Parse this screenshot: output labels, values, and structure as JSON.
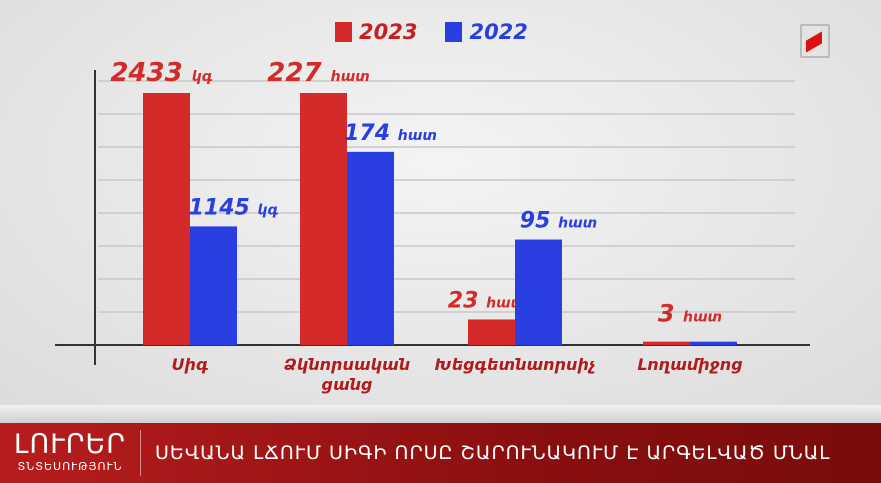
{
  "chart_data": {
    "type": "bar",
    "categories": [
      "Սիգ",
      "Ձկնորսական ցանց",
      "Խեցգետնաորսիչ",
      "Լողամիջոց"
    ],
    "category_lines": [
      [
        "Սիգ"
      ],
      [
        "Ձկնորսական",
        "ցանց"
      ],
      [
        "Խեցգետնաորսիչ"
      ],
      [
        "Լողամիջոց"
      ]
    ],
    "units": [
      "կգ",
      "հատ",
      "հատ",
      "հատ"
    ],
    "series": [
      {
        "name": "2023",
        "color": "#d42a2a",
        "values": [
          2433,
          227,
          23,
          3
        ],
        "labels": [
          "2433",
          "227",
          "23",
          "3"
        ]
      },
      {
        "name": "2022",
        "color": "#2a3fe0",
        "values": [
          1145,
          174,
          95,
          3
        ],
        "labels": [
          "1145",
          "174",
          "95",
          ""
        ]
      }
    ],
    "grid": true,
    "legend": "top"
  },
  "ticker": {
    "brand": "ԼՈՒՐԵՐ",
    "brand_sub": "ՏՆՏԵՍՈՒԹՅՈՒՆ",
    "headline": "ՍԵՎԱՆԱ ԼՃՈՒՄ ՍԻԳԻ ՈՐՍԸ ՇԱՐՈՒՆԱԿՈՒՄ Է ԱՐԳԵԼՎԱԾ ՄՆԱԼ"
  }
}
